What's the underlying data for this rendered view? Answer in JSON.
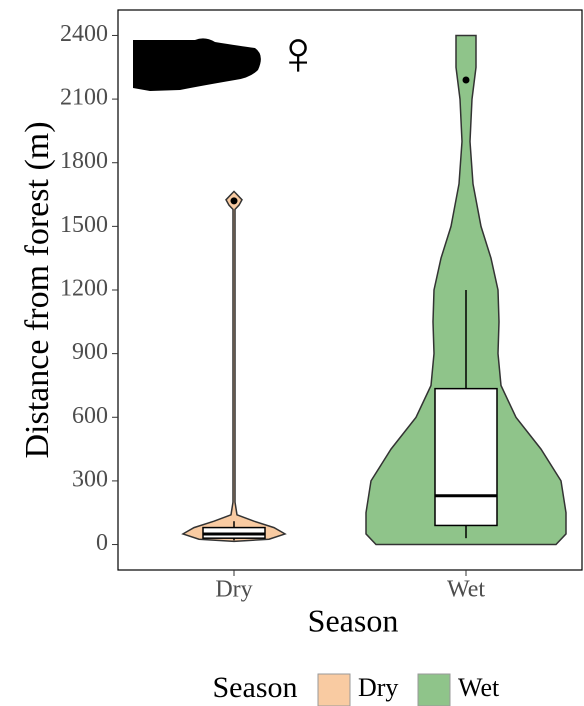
{
  "chart_data": {
    "type": "violin",
    "x_label": "Season",
    "y_label": "Distance from forest (m)",
    "annotation": "♀",
    "legend_title": "Season",
    "categories": [
      "Dry",
      "Wet"
    ],
    "ylim": [
      -120,
      2520
    ],
    "yticks": [
      0,
      300,
      600,
      900,
      1200,
      1500,
      1800,
      2100,
      2400
    ],
    "series": [
      {
        "name": "Dry",
        "color": "#f9cba2",
        "density_y": [
          15,
          25,
          50,
          80,
          110,
          140,
          200,
          1580,
          1600,
          1625,
          1650,
          1665
        ],
        "density_width": [
          0,
          0.35,
          0.51,
          0.4,
          0.2,
          0.03,
          0.01,
          0.01,
          0.05,
          0.08,
          0.03,
          0
        ],
        "whisker_low": 20,
        "q1": 30,
        "median": 50,
        "q3": 80,
        "whisker_high": 110,
        "outliers": [
          1620
        ]
      },
      {
        "name": "Wet",
        "color": "#8fc48a",
        "density_y": [
          0,
          50,
          150,
          300,
          450,
          600,
          750,
          900,
          1050,
          1200,
          1350,
          1500,
          1700,
          1900,
          2100,
          2250,
          2400
        ],
        "density_width": [
          0.9,
          1.0,
          1.0,
          0.95,
          0.75,
          0.5,
          0.35,
          0.32,
          0.33,
          0.32,
          0.25,
          0.15,
          0.07,
          0.04,
          0.06,
          0.1,
          0.1
        ],
        "whisker_low": 30,
        "q1": 90,
        "median": 230,
        "q3": 735,
        "whisker_high": 1200,
        "outliers": [
          2190
        ]
      }
    ]
  }
}
